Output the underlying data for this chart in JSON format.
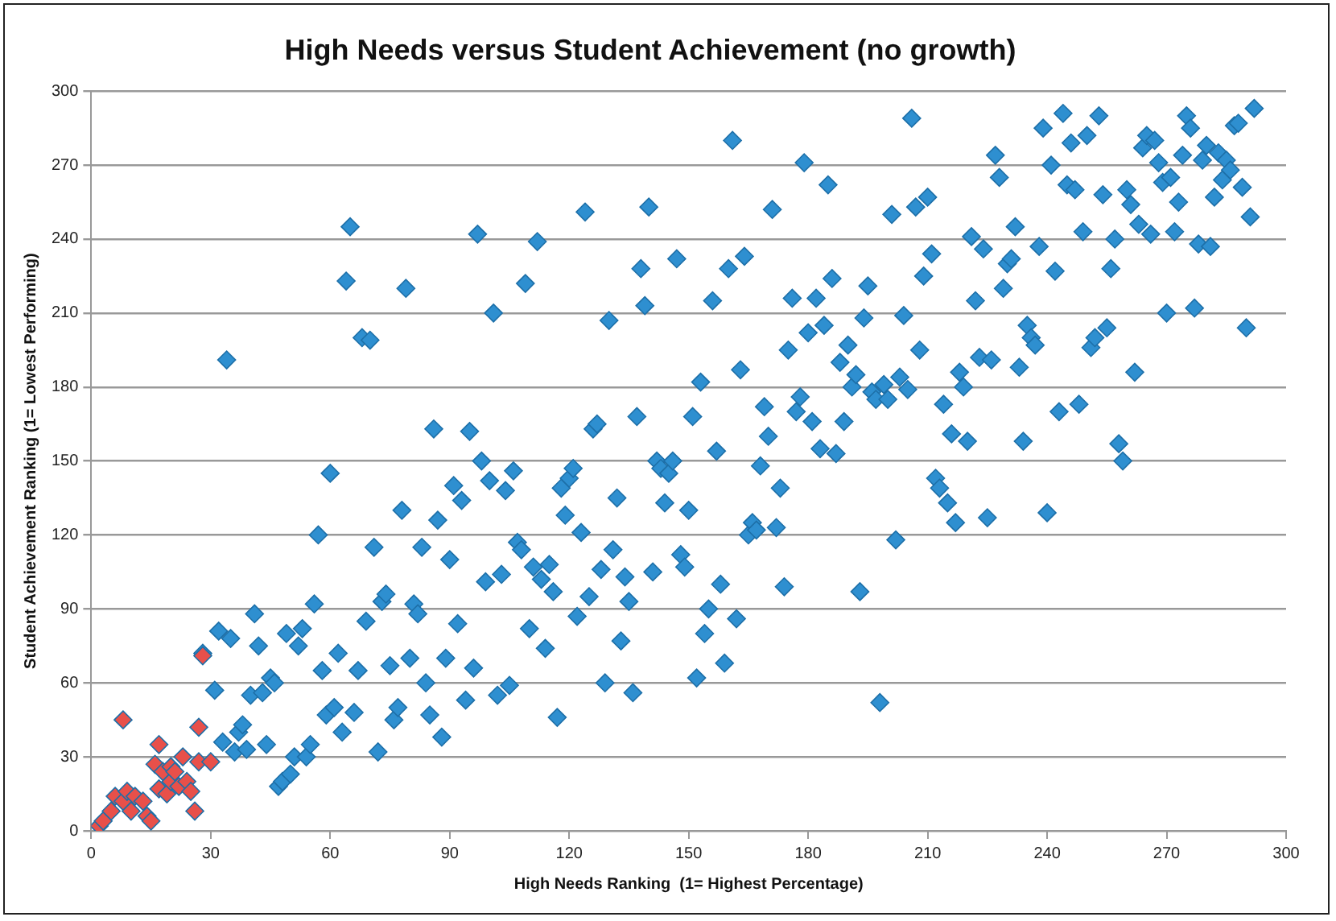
{
  "chart_data": {
    "type": "scatter",
    "title": "High Needs versus Student Achievement (no growth)",
    "xlabel": "High Needs Ranking  (1= Highest Percentage)",
    "ylabel": "Student Achievement Ranking (1= Lowest Performing)",
    "xlim": [
      0,
      300
    ],
    "xticks": [
      0,
      30,
      60,
      90,
      120,
      150,
      180,
      210,
      240,
      270,
      300
    ],
    "ylim": [
      0,
      300
    ],
    "yticks": [
      0,
      30,
      60,
      90,
      120,
      150,
      180,
      210,
      240,
      270,
      300
    ],
    "grid": "y",
    "marker": "diamond",
    "legend": false,
    "series": [
      {
        "color": "#2e8fd0",
        "x": [
          28,
          31,
          32,
          33,
          34,
          35,
          36,
          37,
          38,
          39,
          40,
          41,
          42,
          43,
          44,
          45,
          46,
          47,
          48,
          49,
          50,
          51,
          52,
          53,
          54,
          55,
          56,
          57,
          58,
          59,
          60,
          61,
          62,
          63,
          64,
          65,
          66,
          67,
          68,
          69,
          70,
          71,
          72,
          73,
          74,
          75,
          76,
          77,
          78,
          79,
          80,
          81,
          82,
          83,
          84,
          85,
          86,
          87,
          88,
          89,
          90,
          91,
          92,
          93,
          94,
          95,
          96,
          97,
          98,
          99,
          100,
          101,
          102,
          103,
          104,
          105,
          106,
          107,
          108,
          109,
          110,
          111,
          112,
          113,
          114,
          115,
          116,
          117,
          118,
          119,
          120,
          121,
          122,
          123,
          124,
          125,
          126,
          127,
          128,
          129,
          130,
          131,
          132,
          133,
          134,
          135,
          136,
          137,
          138,
          139,
          140,
          141,
          142,
          143,
          144,
          145,
          146,
          147,
          148,
          149,
          150,
          151,
          152,
          153,
          154,
          155,
          156,
          157,
          158,
          159,
          160,
          161,
          162,
          163,
          164,
          165,
          166,
          167,
          168,
          169,
          170,
          171,
          172,
          173,
          174,
          175,
          176,
          177,
          178,
          179,
          180,
          181,
          182,
          183,
          184,
          185,
          186,
          187,
          188,
          189,
          190,
          191,
          192,
          193,
          194,
          195,
          196,
          197,
          198,
          199,
          200,
          201,
          202,
          203,
          204,
          205,
          206,
          207,
          208,
          209,
          210,
          211,
          212,
          213,
          214,
          215,
          216,
          217,
          218,
          219,
          220,
          221,
          222,
          223,
          224,
          225,
          226,
          227,
          228,
          229,
          230,
          231,
          232,
          233,
          234,
          235,
          236,
          237,
          238,
          239,
          240,
          241,
          242,
          243,
          244,
          245,
          246,
          247,
          248,
          249,
          250,
          251,
          252,
          253,
          254,
          255,
          256,
          257,
          258,
          259,
          260,
          261,
          262,
          263,
          264,
          265,
          266,
          267,
          268,
          269,
          270,
          271,
          272,
          273,
          274,
          275,
          276,
          277,
          278,
          279,
          280,
          281,
          282,
          283,
          284,
          285,
          286,
          287,
          288,
          289,
          290,
          291,
          292
        ],
        "values": [
          72,
          57,
          81,
          36,
          191,
          78,
          32,
          40,
          43,
          33,
          55,
          88,
          75,
          56,
          35,
          62,
          60,
          18,
          20,
          80,
          23,
          30,
          75,
          82,
          30,
          35,
          92,
          120,
          65,
          47,
          145,
          50,
          72,
          40,
          223,
          245,
          48,
          65,
          200,
          85,
          199,
          115,
          32,
          93,
          96,
          67,
          45,
          50,
          130,
          220,
          70,
          92,
          88,
          115,
          60,
          47,
          163,
          126,
          38,
          70,
          110,
          140,
          84,
          134,
          53,
          162,
          66,
          242,
          150,
          101,
          142,
          210,
          55,
          104,
          138,
          59,
          146,
          117,
          114,
          222,
          82,
          107,
          239,
          102,
          74,
          108,
          97,
          46,
          139,
          128,
          143,
          147,
          87,
          121,
          251,
          95,
          163,
          165,
          106,
          60,
          207,
          114,
          135,
          77,
          103,
          93,
          56,
          168,
          228,
          213,
          253,
          105,
          150,
          147,
          133,
          145,
          150,
          232,
          112,
          107,
          130,
          168,
          62,
          182,
          80,
          90,
          215,
          154,
          100,
          68,
          228,
          280,
          86,
          187,
          233,
          120,
          125,
          122,
          148,
          172,
          160,
          252,
          123,
          139,
          99,
          195,
          216,
          170,
          176,
          271,
          202,
          166,
          216,
          155,
          205,
          262,
          224,
          153,
          190,
          166,
          197,
          180,
          185,
          97,
          208,
          221,
          178,
          175,
          52,
          181,
          175,
          250,
          118,
          184,
          209,
          179,
          289,
          253,
          195,
          225,
          257,
          234,
          143,
          139,
          173,
          133,
          161,
          125,
          186,
          180,
          158,
          241,
          215,
          192,
          236,
          127,
          191,
          274,
          265,
          220,
          230,
          232,
          245,
          188,
          158,
          205,
          200,
          197,
          237,
          285,
          129,
          270,
          227,
          170,
          291,
          262,
          279,
          260,
          173,
          243,
          282,
          196,
          200,
          290,
          258,
          204,
          228,
          240,
          157,
          150,
          260,
          254,
          186,
          246,
          277,
          282,
          242,
          280,
          271,
          263,
          210,
          265,
          243,
          255,
          274,
          290,
          285,
          212,
          238,
          272,
          278,
          237,
          257,
          275,
          264,
          272,
          268,
          286,
          287,
          261,
          204,
          249,
          293
        ]
      },
      {
        "color": "#e8504a",
        "x": [
          2,
          3,
          5,
          6,
          8,
          8,
          9,
          10,
          11,
          13,
          14,
          15,
          16,
          17,
          17,
          18,
          19,
          20,
          20,
          21,
          22,
          23,
          24,
          25,
          26,
          27,
          27,
          28,
          30
        ],
        "values": [
          2,
          4,
          8,
          14,
          12,
          45,
          16,
          8,
          14,
          12,
          6,
          4,
          27,
          35,
          17,
          24,
          15,
          20,
          26,
          24,
          18,
          30,
          20,
          16,
          8,
          42,
          28,
          71,
          28
        ]
      }
    ]
  }
}
